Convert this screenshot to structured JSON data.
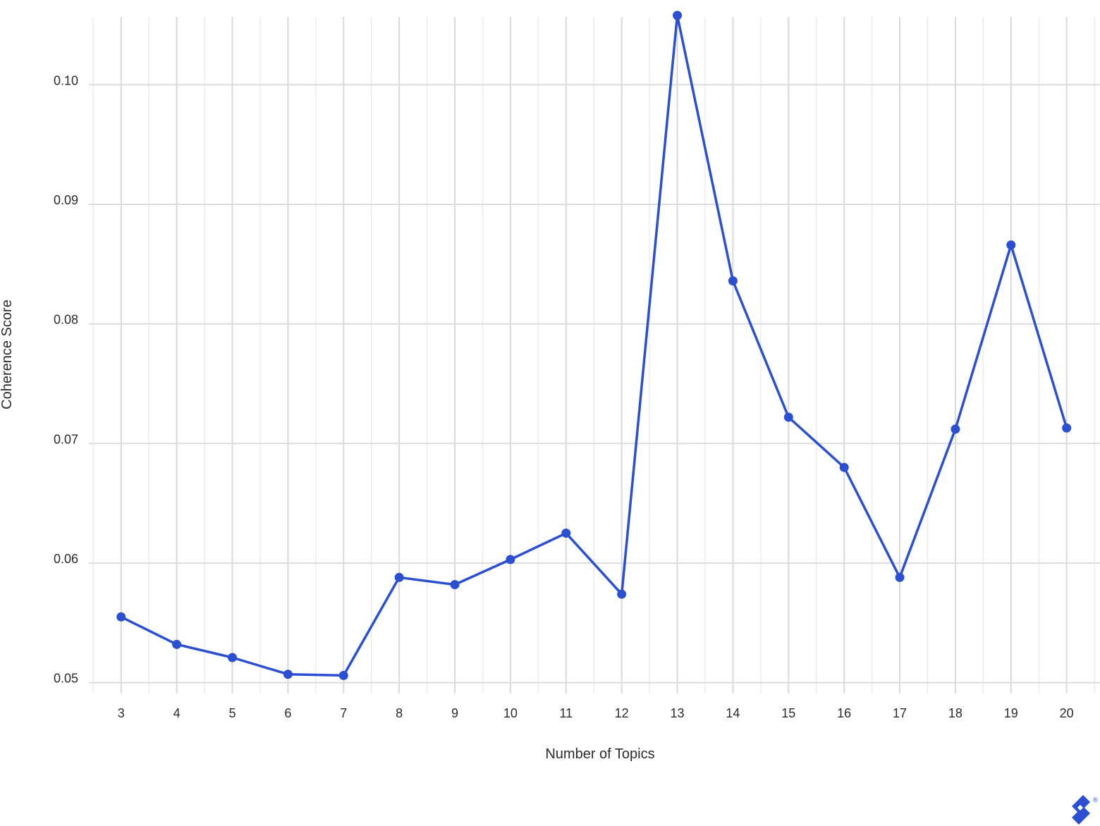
{
  "chart_data": {
    "type": "line",
    "xlabel": "Number of Topics",
    "ylabel": "Coherence Score",
    "x": [
      3,
      4,
      5,
      6,
      7,
      8,
      9,
      10,
      11,
      12,
      13,
      14,
      15,
      16,
      17,
      18,
      19,
      20
    ],
    "x_tick_labels": [
      "3",
      "4",
      "5",
      "6",
      "7",
      "8",
      "9",
      "10",
      "11",
      "12",
      "13",
      "14",
      "15",
      "16",
      "17",
      "18",
      "19",
      "20"
    ],
    "y_tick_values": [
      0.05,
      0.06,
      0.07,
      0.08,
      0.09,
      0.1
    ],
    "y_tick_labels": [
      "0.05",
      "0.06",
      "0.07",
      "0.08",
      "0.09",
      "0.10"
    ],
    "series": [
      {
        "values": [
          0.0555,
          0.0532,
          0.0521,
          0.0507,
          0.0506,
          0.0588,
          0.0582,
          0.0603,
          0.0625,
          0.0574,
          0.1058,
          0.0836,
          0.0722,
          0.068,
          0.0588,
          0.0712,
          0.0866,
          0.0713
        ],
        "color": "#2a4fd1"
      }
    ],
    "xlim": [
      2.42,
      20.6
    ],
    "ylim": [
      0.0498,
      0.1065
    ],
    "grid": true,
    "legend": "none"
  },
  "logo": {
    "name": "toptal-logo-icon",
    "color": "#2a4fd1"
  }
}
